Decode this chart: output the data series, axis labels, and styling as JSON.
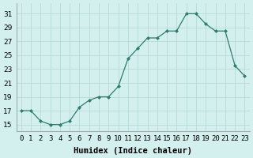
{
  "x": [
    0,
    1,
    2,
    3,
    4,
    5,
    6,
    7,
    8,
    9,
    10,
    11,
    12,
    13,
    14,
    15,
    16,
    17,
    18,
    19,
    20,
    21,
    22,
    23
  ],
  "y": [
    17,
    17,
    15.5,
    15,
    15,
    15.5,
    17.5,
    18.5,
    19,
    19,
    20.5,
    24.5,
    26,
    27.5,
    27.5,
    28.5,
    28.5,
    31,
    31,
    29.5,
    28.5,
    28.5,
    23.5,
    22
  ],
  "xlabel": "Humidex (Indice chaleur)",
  "xlim": [
    -0.5,
    23.5
  ],
  "ylim": [
    14,
    32.5
  ],
  "yticks": [
    15,
    17,
    19,
    21,
    23,
    25,
    27,
    29,
    31
  ],
  "xtick_labels": [
    "0",
    "1",
    "2",
    "3",
    "4",
    "5",
    "6",
    "7",
    "8",
    "9",
    "10",
    "11",
    "12",
    "13",
    "14",
    "15",
    "16",
    "17",
    "18",
    "19",
    "20",
    "21",
    "22",
    "23"
  ],
  "line_color": "#2e7d6e",
  "marker_color": "#2e7d6e",
  "bg_color": "#d4f0ee",
  "grid_color": "#b8dbd8",
  "label_fontsize": 7.5,
  "tick_fontsize": 6.5
}
